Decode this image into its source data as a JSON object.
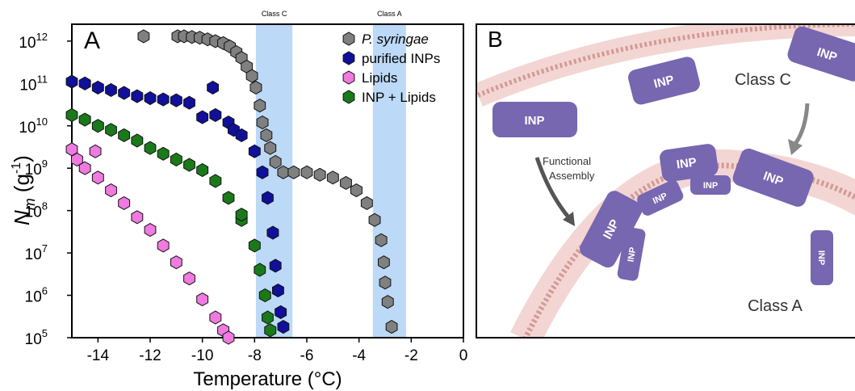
{
  "chart_data": {
    "type": "scatter",
    "panel_label": "A",
    "x_label": "Temperature (°C)",
    "y_label": {
      "symbol": "N",
      "subscript": "m",
      "unit": "(g",
      "exponent": "-1",
      "close": ")"
    },
    "xlim": [
      -15,
      0
    ],
    "xticks": [
      -14,
      -12,
      -10,
      -8,
      -6,
      -4,
      -2,
      0
    ],
    "yscale": "log",
    "ylim": [
      100000,
      2500000000000
    ],
    "yticks": [
      {
        "value": 100000,
        "label": "10",
        "exponent": "5"
      },
      {
        "value": 1000000,
        "label": "10",
        "exponent": "6"
      },
      {
        "value": 10000000,
        "label": "10",
        "exponent": "7"
      },
      {
        "value": 100000000,
        "label": "10",
        "exponent": "8"
      },
      {
        "value": 1000000000,
        "label": "10",
        "exponent": "9"
      },
      {
        "value": 10000000000,
        "label": "10",
        "exponent": "10"
      },
      {
        "value": 100000000000,
        "label": "10",
        "exponent": "11"
      },
      {
        "value": 1000000000000,
        "label": "10",
        "exponent": "12"
      }
    ],
    "bands": [
      {
        "label": "Class C",
        "xlim": [
          -7.95,
          -6.55
        ],
        "color": "#bcd9f7"
      },
      {
        "label": "Class A",
        "xlim": [
          -3.47,
          -2.2
        ],
        "color": "#bcd9f7"
      }
    ],
    "legend": "upper right",
    "series": [
      {
        "name": "P. syringae",
        "italic": true,
        "color": "#808080",
        "x": [
          -12.25,
          -10.95,
          -10.7,
          -10.4,
          -10.1,
          -9.8,
          -9.5,
          -9.2,
          -8.95,
          -8.7,
          -8.5,
          -8.3,
          -8.1,
          -7.95,
          -7.8,
          -7.7,
          -7.55,
          -7.4,
          -7.2,
          -6.9,
          -6.5,
          -6.0,
          -5.5,
          -5.0,
          -4.5,
          -4.1,
          -3.7,
          -3.4,
          -3.15,
          -3.05,
          -3.0,
          -2.9,
          -2.75
        ],
        "values": [
          1300000000000,
          1300000000000,
          1300000000000,
          1250000000000,
          1200000000000,
          1100000000000,
          1000000000000,
          900000000000,
          750000000000,
          550000000000,
          400000000000,
          250000000000,
          150000000000,
          80000000000,
          30000000000,
          12000000000,
          6000000000,
          3000000000,
          1400000000,
          800000000,
          800000000,
          800000000,
          700000000,
          600000000,
          450000000,
          300000000,
          150000000,
          60000000,
          20000000,
          6000000,
          2000000,
          700000,
          180000
        ]
      },
      {
        "name": "purified INPs",
        "italic": false,
        "color": "#10109a",
        "x": [
          -15.0,
          -14.5,
          -14.0,
          -13.5,
          -13.0,
          -12.5,
          -12.0,
          -11.5,
          -11.0,
          -10.5,
          -10.0,
          -9.6,
          -9.5,
          -9.0,
          -8.8,
          -8.5,
          -8.0,
          -7.7,
          -7.5,
          -7.3,
          -7.2,
          -7.1,
          -7.0,
          -6.9
        ],
        "values": [
          110000000000,
          100000000000,
          80000000000,
          70000000000,
          60000000000,
          50000000000,
          45000000000,
          42000000000,
          40000000000,
          35000000000,
          16000000000,
          80000000000,
          18000000000,
          12000000000,
          8000000000,
          6000000000,
          2500000000,
          800000000,
          200000000,
          30000000,
          5000000,
          1300000,
          400000,
          180000
        ]
      },
      {
        "name": "Lipids",
        "italic": false,
        "color": "#f07ae0",
        "x": [
          -15.0,
          -14.8,
          -14.5,
          -14.1,
          -14.0,
          -13.5,
          -13.0,
          -12.5,
          -12.0,
          -11.5,
          -11.0,
          -10.5,
          -10.0,
          -9.5,
          -9.2,
          -9.0
        ],
        "values": [
          2800000000,
          1600000000,
          1000000000,
          2500000000,
          600000000,
          300000000,
          150000000,
          70000000,
          35000000,
          15000000,
          6000000,
          2500000,
          800000,
          300000,
          150000,
          100000
        ]
      },
      {
        "name": "INP + Lipids",
        "italic": false,
        "color": "#1a7a1a",
        "x": [
          -15.0,
          -14.5,
          -14.0,
          -13.5,
          -13.0,
          -12.5,
          -12.0,
          -11.5,
          -11.0,
          -10.5,
          -10.0,
          -9.5,
          -9.0,
          -8.5,
          -8.5,
          -8.0,
          -7.8,
          -7.6,
          -7.5,
          -7.4
        ],
        "values": [
          18000000000,
          14000000000,
          10000000000,
          8000000000,
          6000000000,
          4500000000,
          3000000000,
          2200000000,
          1600000000,
          1200000000,
          900000000,
          500000000,
          200000000,
          60000000,
          80000000,
          15000000,
          4000000,
          1000000,
          300000,
          150000
        ]
      }
    ]
  },
  "panel_b": {
    "label": "B",
    "protein": "INP",
    "class_c": "Class C",
    "class_a": "Class A",
    "assembly": [
      "Functional",
      "Assembly"
    ]
  }
}
